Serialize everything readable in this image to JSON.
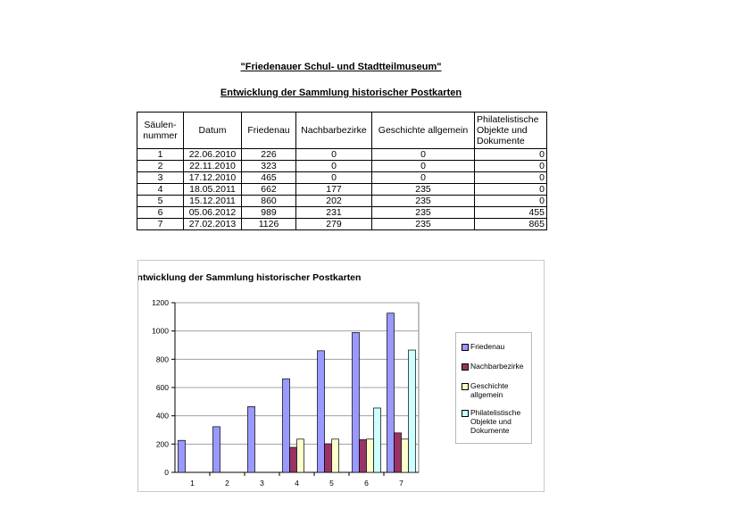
{
  "header": {
    "title": "\"Friedenauer Schul- und Stadtteilmuseum\"",
    "subtitle": "Entwicklung der Sammlung historischer Postkarten"
  },
  "table": {
    "columns": [
      "Säulen-nummer",
      "Datum",
      "Friedenau",
      "Nachbarbezirke",
      "Geschichte allgemein",
      "Philatelistische Objekte und Dokumente"
    ],
    "rows": [
      [
        "1",
        "22.06.2010",
        "226",
        "0",
        "0",
        "0"
      ],
      [
        "2",
        "22.11.2010",
        "323",
        "0",
        "0",
        "0"
      ],
      [
        "3",
        "17.12.2010",
        "465",
        "0",
        "0",
        "0"
      ],
      [
        "4",
        "18.05.2011",
        "662",
        "177",
        "235",
        "0"
      ],
      [
        "5",
        "15.12.2011",
        "860",
        "202",
        "235",
        "0"
      ],
      [
        "6",
        "05.06.2012",
        "989",
        "231",
        "235",
        "455"
      ],
      [
        "7",
        "27.02.2013",
        "1126",
        "279",
        "235",
        "865"
      ]
    ]
  },
  "chart_data": {
    "type": "bar",
    "title": "Entwicklung der Sammlung historischer Postkarten",
    "xlabel": "",
    "ylabel": "",
    "categories": [
      "1",
      "2",
      "3",
      "4",
      "5",
      "6",
      "7"
    ],
    "ylim": [
      0,
      1200
    ],
    "yticks": [
      0,
      200,
      400,
      600,
      800,
      1000,
      1200
    ],
    "grid": true,
    "legend_position": "right",
    "series": [
      {
        "name": "Friedenau",
        "color": "#9999ff",
        "values": [
          226,
          323,
          465,
          662,
          860,
          989,
          1126
        ]
      },
      {
        "name": "Nachbarbezirke",
        "color": "#993366",
        "values": [
          0,
          0,
          0,
          177,
          202,
          231,
          279
        ]
      },
      {
        "name": "Geschichte allgemein",
        "color": "#ffffcc",
        "values": [
          0,
          0,
          0,
          235,
          235,
          235,
          235
        ]
      },
      {
        "name": "Philatelistische Objekte und Dokumente",
        "color": "#ccffff",
        "values": [
          0,
          0,
          0,
          0,
          0,
          455,
          865
        ]
      }
    ]
  }
}
